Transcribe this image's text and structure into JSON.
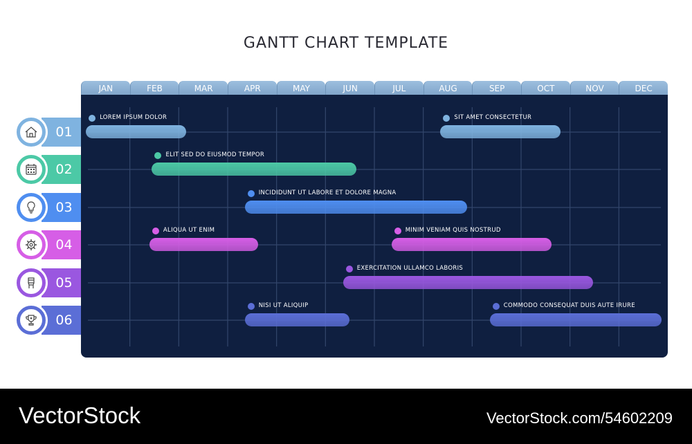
{
  "title": "GANTT CHART TEMPLATE",
  "chart_data": {
    "type": "gantt",
    "title": "GANTT CHART TEMPLATE",
    "months": [
      "JAN",
      "FEB",
      "MAR",
      "APR",
      "MAY",
      "JUN",
      "JUL",
      "AUG",
      "SEP",
      "OCT",
      "NOV",
      "DEC"
    ],
    "x_unit": "months from start of JAN",
    "xlim": [
      0,
      12
    ],
    "grid": true,
    "rows": [
      {
        "number": "01",
        "icon": "house-icon",
        "color": "#7fb3e0",
        "tasks": [
          {
            "label": "LOREM IPSUM DOLOR",
            "start": 0.1,
            "end": 2.15
          },
          {
            "label": "SIT AMET CONSECTETUR",
            "start": 7.35,
            "end": 9.8
          }
        ]
      },
      {
        "number": "02",
        "icon": "calendar-icon",
        "color": "#4cc9a6",
        "tasks": [
          {
            "label": "ELIT SED DO EIUSMOD TEMPOR",
            "start": 1.45,
            "end": 5.63
          }
        ]
      },
      {
        "number": "03",
        "icon": "lightbulb-icon",
        "color": "#4f8ef0",
        "tasks": [
          {
            "label": "INCIDIDUNT UT LABORE ET DOLORE MAGNA",
            "start": 3.35,
            "end": 7.9
          }
        ]
      },
      {
        "number": "04",
        "icon": "gear-icon",
        "color": "#d65ee6",
        "tasks": [
          {
            "label": "ALIQUA UT ENIM",
            "start": 1.4,
            "end": 3.62
          },
          {
            "label": "MINIM VENIAM QUIS NOSTRUD",
            "start": 6.35,
            "end": 9.62
          }
        ]
      },
      {
        "number": "05",
        "icon": "raised-fist-icon",
        "color": "#9a57e0",
        "tasks": [
          {
            "label": "EXERCITATION ULLAMCO LABORIS",
            "start": 5.36,
            "end": 10.47
          }
        ]
      },
      {
        "number": "06",
        "icon": "trophy-icon",
        "color": "#5b6ed6",
        "tasks": [
          {
            "label": "NISI UT ALIQUIP",
            "start": 3.35,
            "end": 5.49
          },
          {
            "label": "COMMODO CONSEQUAT DUIS AUTE IRURE",
            "start": 8.36,
            "end": 11.87
          }
        ]
      }
    ]
  },
  "colors": {
    "panel": "#0f1f40",
    "header": "#8fb2d6"
  },
  "footer": {
    "brand": "VectorStock",
    "id_text": "VectorStock.com/54602209"
  },
  "watermark": "VectorStock"
}
